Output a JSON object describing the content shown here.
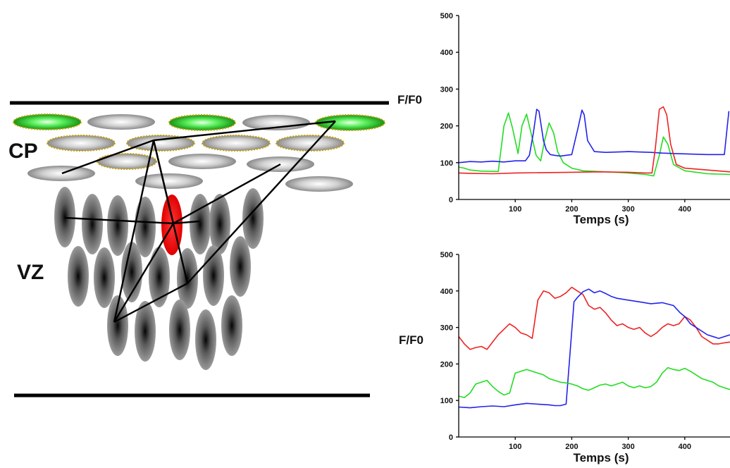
{
  "diagram": {
    "labels": {
      "cp": "CP",
      "vz": "VZ"
    }
  },
  "colors": {
    "red": "#ee2222",
    "green": "#22dd22",
    "blue": "#2222ee",
    "active_cell": "#ff1111"
  },
  "chart_data": [
    {
      "type": "line",
      "title": "",
      "ylabel": "F/F0",
      "xlabel": "Temps (s)",
      "xlim": [
        0,
        480
      ],
      "ylim": [
        0,
        500
      ],
      "x_ticks": [
        100,
        200,
        300,
        400
      ],
      "y_ticks": [
        0,
        100,
        200,
        300,
        400,
        500
      ],
      "grid": false,
      "series": [
        {
          "color": "#22dd22",
          "x": [
            0,
            10,
            20,
            40,
            70,
            80,
            88,
            95,
            105,
            112,
            120,
            128,
            137,
            145,
            152,
            160,
            168,
            175,
            185,
            200,
            220,
            260,
            300,
            330,
            345,
            355,
            362,
            370,
            380,
            400,
            440,
            480
          ],
          "y": [
            88,
            85,
            80,
            77,
            76,
            200,
            235,
            195,
            125,
            200,
            232,
            180,
            120,
            105,
            160,
            208,
            180,
            130,
            100,
            85,
            78,
            75,
            72,
            68,
            64,
            120,
            170,
            150,
            95,
            78,
            70,
            68
          ]
        },
        {
          "color": "#2222ee",
          "x": [
            0,
            20,
            40,
            60,
            80,
            100,
            118,
            125,
            132,
            138,
            142,
            145,
            150,
            155,
            162,
            170,
            180,
            200,
            212,
            218,
            222,
            228,
            240,
            260,
            300,
            340,
            360,
            380,
            400,
            440,
            470,
            478
          ],
          "y": [
            100,
            103,
            102,
            104,
            102,
            105,
            105,
            120,
            180,
            245,
            240,
            210,
            160,
            135,
            122,
            120,
            118,
            122,
            200,
            243,
            230,
            160,
            130,
            128,
            130,
            128,
            126,
            125,
            124,
            122,
            122,
            240
          ]
        },
        {
          "color": "#ee2222",
          "x": [
            0,
            20,
            60,
            100,
            150,
            200,
            250,
            300,
            330,
            342,
            348,
            355,
            362,
            368,
            375,
            385,
            400,
            440,
            480
          ],
          "y": [
            72,
            71,
            70,
            72,
            73,
            74,
            75,
            74,
            72,
            72,
            140,
            245,
            252,
            230,
            150,
            95,
            85,
            80,
            75
          ]
        }
      ]
    },
    {
      "type": "line",
      "title": "",
      "ylabel": "F/F0",
      "xlabel": "Temps (s)",
      "xlim": [
        0,
        480
      ],
      "ylim": [
        0,
        500
      ],
      "x_ticks": [
        100,
        200,
        300,
        400
      ],
      "y_ticks": [
        0,
        100,
        200,
        300,
        400,
        500
      ],
      "grid": false,
      "series": [
        {
          "color": "#ee2222",
          "x": [
            0,
            10,
            20,
            30,
            40,
            50,
            60,
            70,
            80,
            90,
            100,
            110,
            120,
            130,
            140,
            150,
            160,
            170,
            180,
            190,
            200,
            210,
            220,
            230,
            240,
            250,
            260,
            270,
            280,
            290,
            300,
            310,
            320,
            330,
            340,
            350,
            360,
            370,
            380,
            390,
            400,
            410,
            420,
            430,
            440,
            450,
            460,
            470,
            480
          ],
          "y": [
            275,
            255,
            240,
            245,
            248,
            240,
            260,
            280,
            295,
            310,
            300,
            285,
            280,
            270,
            375,
            400,
            395,
            380,
            385,
            395,
            410,
            400,
            390,
            360,
            350,
            355,
            340,
            320,
            305,
            310,
            300,
            295,
            300,
            285,
            275,
            285,
            300,
            310,
            305,
            310,
            330,
            320,
            300,
            275,
            265,
            255,
            255,
            258,
            260
          ]
        },
        {
          "color": "#2222ee",
          "x": [
            0,
            20,
            40,
            60,
            80,
            100,
            120,
            140,
            160,
            170,
            180,
            190,
            198,
            204,
            210,
            220,
            230,
            240,
            250,
            260,
            270,
            280,
            300,
            320,
            340,
            360,
            380,
            392,
            400,
            410,
            420,
            440,
            460,
            480
          ],
          "y": [
            82,
            80,
            83,
            85,
            83,
            88,
            92,
            90,
            88,
            86,
            86,
            90,
            250,
            370,
            382,
            398,
            405,
            395,
            400,
            393,
            385,
            380,
            375,
            370,
            365,
            368,
            360,
            340,
            330,
            310,
            300,
            280,
            270,
            280
          ]
        },
        {
          "color": "#22dd22",
          "x": [
            0,
            10,
            20,
            30,
            40,
            50,
            60,
            70,
            80,
            90,
            100,
            110,
            120,
            130,
            140,
            150,
            160,
            170,
            180,
            190,
            200,
            210,
            220,
            230,
            240,
            250,
            260,
            270,
            280,
            290,
            300,
            310,
            320,
            330,
            340,
            350,
            360,
            370,
            380,
            390,
            400,
            410,
            420,
            430,
            440,
            450,
            460,
            470,
            480
          ],
          "y": [
            112,
            108,
            120,
            145,
            150,
            155,
            138,
            125,
            115,
            120,
            175,
            180,
            185,
            180,
            175,
            170,
            160,
            155,
            150,
            148,
            145,
            140,
            132,
            128,
            135,
            142,
            145,
            140,
            145,
            150,
            140,
            135,
            140,
            135,
            138,
            150,
            175,
            190,
            185,
            182,
            188,
            180,
            170,
            160,
            155,
            150,
            140,
            135,
            130
          ]
        }
      ]
    }
  ]
}
